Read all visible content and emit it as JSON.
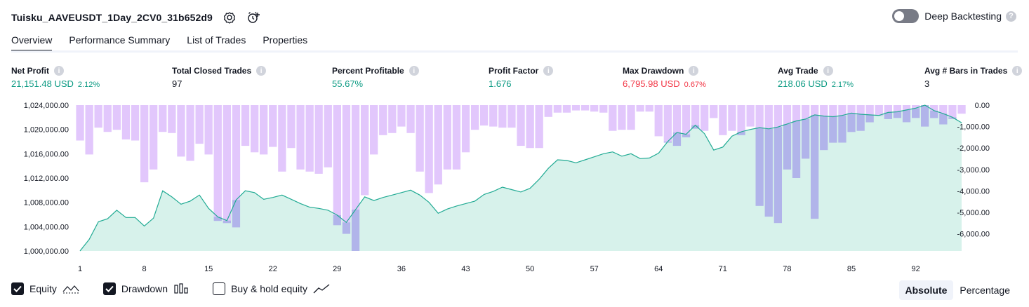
{
  "header": {
    "strategy_name": "Tuisku_AAVEUSDT_1Day_2CV0_31b652d9",
    "deep_backtesting_label": "Deep Backtesting",
    "deep_backtesting_on": false
  },
  "tabs": [
    {
      "label": "Overview",
      "active": true
    },
    {
      "label": "Performance Summary",
      "active": false
    },
    {
      "label": "List of Trades",
      "active": false
    },
    {
      "label": "Properties",
      "active": false
    }
  ],
  "metrics": {
    "net_profit": {
      "label": "Net Profit",
      "value": "21,151.48 USD",
      "pct": "2.12%"
    },
    "total_closed_trades": {
      "label": "Total Closed Trades",
      "value": "97"
    },
    "percent_profitable": {
      "label": "Percent Profitable",
      "value": "55.67%"
    },
    "profit_factor": {
      "label": "Profit Factor",
      "value": "1.676"
    },
    "max_drawdown": {
      "label": "Max Drawdown",
      "value": "6,795.98 USD",
      "pct": "0.67%"
    },
    "avg_trade": {
      "label": "Avg Trade",
      "value": "218.06 USD",
      "pct": "2.17%"
    },
    "avg_bars": {
      "label": "Avg # Bars in Trades",
      "value": "3"
    }
  },
  "legend": {
    "equity": {
      "label": "Equity",
      "checked": true
    },
    "drawdown": {
      "label": "Drawdown",
      "checked": true
    },
    "buy_hold": {
      "label": "Buy & hold equity",
      "checked": false
    }
  },
  "mode": {
    "absolute": "Absolute",
    "percentage": "Percentage",
    "selected": "Absolute"
  },
  "colors": {
    "positive": "#089981",
    "negative": "#f23645",
    "equity_line": "#22ab94",
    "equity_fill": "#d3f1e9",
    "drawdown_bar": "#e2c7fc",
    "drawdown_overlap": "#b1b4ea"
  },
  "chart_data": {
    "type": "area",
    "x_ticks": [
      "1",
      "8",
      "15",
      "22",
      "29",
      "36",
      "43",
      "50",
      "57",
      "64",
      "71",
      "78",
      "85",
      "92"
    ],
    "left_axis": {
      "ticks": [
        "1,000,000.00",
        "1,004,000.00",
        "1,008,000.00",
        "1,012,000.00",
        "1,016,000.00",
        "1,020,000.00",
        "1,024,000.00"
      ],
      "range": [
        1000000,
        1024000
      ]
    },
    "right_axis": {
      "ticks": [
        "0.00",
        "-1,000.00",
        "-2,000.00",
        "-3,000.00",
        "-4,000.00",
        "-5,000.00",
        "-6,000.00"
      ],
      "range": [
        -6800,
        0
      ]
    },
    "series": [
      {
        "name": "Equity",
        "values": [
          1000000,
          1001900,
          1004800,
          1005300,
          1006700,
          1005500,
          1005500,
          1004100,
          1005400,
          1009900,
          1008900,
          1007700,
          1008200,
          1009200,
          1007000,
          1005600,
          1005000,
          1008400,
          1009900,
          1009600,
          1008500,
          1008800,
          1009200,
          1008500,
          1007800,
          1007200,
          1007000,
          1006700,
          1005900,
          1004700,
          1006800,
          1008900,
          1008300,
          1008800,
          1009200,
          1009600,
          1010000,
          1009200,
          1008000,
          1006200,
          1006900,
          1007400,
          1007800,
          1008200,
          1009300,
          1009800,
          1010500,
          1010100,
          1009700,
          1010300,
          1011800,
          1013600,
          1015000,
          1014900,
          1014500,
          1015000,
          1015500,
          1016000,
          1016300,
          1015600,
          1016000,
          1015200,
          1015300,
          1016100,
          1018000,
          1019500,
          1019200,
          1020700,
          1019300,
          1016600,
          1017100,
          1018900,
          1019600,
          1020000,
          1020300,
          1020100,
          1020400,
          1020900,
          1021400,
          1021700,
          1022400,
          1022200,
          1022100,
          1022300,
          1022700,
          1022500,
          1022400,
          1022300,
          1022800,
          1022900,
          1023200,
          1023500,
          1024000,
          1023100,
          1022600,
          1022000,
          1021100
        ]
      },
      {
        "name": "Drawdown",
        "values": [
          -1650,
          -2300,
          -1050,
          -1250,
          -1150,
          -1600,
          -1650,
          -3600,
          -3000,
          -1250,
          -1300,
          -2400,
          -2600,
          -1800,
          -2300,
          -5400,
          -5500,
          -5700,
          -1900,
          -2200,
          -2300,
          -1950,
          -3100,
          -2000,
          -3000,
          -3100,
          -3200,
          -2900,
          -5600,
          -6000,
          -6800,
          -4200,
          -2300,
          -1400,
          -1300,
          -1000,
          -1300,
          -3100,
          -4100,
          -3700,
          -3000,
          -3000,
          -2200,
          -1150,
          -950,
          -1000,
          -1050,
          -1050,
          -1900,
          -2000,
          -2000,
          -550,
          -350,
          -350,
          -250,
          -250,
          -300,
          -350,
          -1200,
          -1150,
          -1150,
          -300,
          -300,
          -1450,
          -1750,
          -1900,
          -1500,
          -1100,
          -1200,
          -600,
          -1400,
          -1200,
          -1400,
          -1000,
          -4700,
          -5200,
          -5500,
          -3000,
          -3400,
          -2500,
          -5300,
          -2100,
          -1750,
          -1750,
          -1250,
          -1200,
          -800,
          -500,
          -650,
          -600,
          -800,
          -600,
          -1000,
          -600,
          -900,
          -650,
          -400
        ]
      }
    ]
  }
}
